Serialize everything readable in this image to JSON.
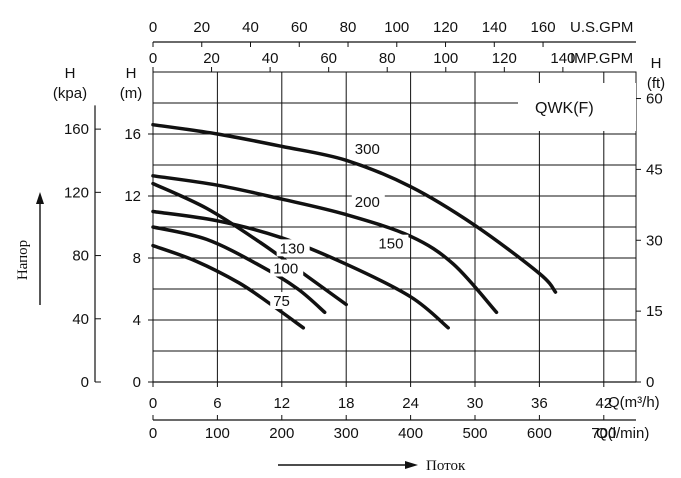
{
  "chart_data": {
    "type": "line",
    "model_label": "QWK(F)",
    "axes": {
      "bottom_primary": {
        "unit_label": "Q(m³/h)",
        "min": 0,
        "max": 45,
        "ticks": [
          0,
          6,
          12,
          18,
          24,
          30,
          36,
          42
        ]
      },
      "bottom_secondary": {
        "unit_label": "Q(l/min)",
        "ticks": [
          0,
          100,
          200,
          300,
          400,
          500,
          600,
          700
        ]
      },
      "top_us": {
        "unit_label": "U.S.GPM",
        "ticks": [
          0,
          20,
          40,
          60,
          80,
          100,
          120,
          140,
          160
        ]
      },
      "top_imp": {
        "unit_label": "IMP.GPM",
        "ticks": [
          0,
          20,
          40,
          60,
          80,
          100,
          120,
          140
        ]
      },
      "left_m": {
        "label_h": "H",
        "label_unit": "(m)",
        "min": 0,
        "max": 20,
        "ticks": [
          0,
          4,
          8,
          12,
          16
        ]
      },
      "left_kpa": {
        "label_h": "H",
        "label_unit": "(kpa)",
        "ticks": [
          0,
          40,
          80,
          120,
          160
        ]
      },
      "right_ft": {
        "label_h": "H",
        "label_unit": "(ft)",
        "ticks": [
          0,
          15,
          30,
          45,
          60
        ]
      }
    },
    "side_labels": {
      "y_text": "Напор",
      "x_text": "Поток"
    },
    "grid": true,
    "series": [
      {
        "name": "300",
        "points": [
          [
            0,
            16.6
          ],
          [
            6,
            16.0
          ],
          [
            12,
            15.2
          ],
          [
            18,
            14.3
          ],
          [
            24,
            12.6
          ],
          [
            30,
            10.1
          ],
          [
            36,
            7.0
          ],
          [
            37.5,
            5.8
          ]
        ]
      },
      {
        "name": "200",
        "points": [
          [
            0,
            13.3
          ],
          [
            6,
            12.7
          ],
          [
            12,
            11.8
          ],
          [
            18,
            10.8
          ],
          [
            24,
            9.4
          ],
          [
            28,
            7.6
          ],
          [
            32,
            4.5
          ]
        ]
      },
      {
        "name": "150",
        "points": [
          [
            0,
            11.0
          ],
          [
            6,
            10.4
          ],
          [
            12,
            9.3
          ],
          [
            18,
            7.6
          ],
          [
            24,
            5.5
          ],
          [
            27.5,
            3.5
          ]
        ]
      },
      {
        "name": "130",
        "points": [
          [
            0,
            12.8
          ],
          [
            5,
            11.2
          ],
          [
            10,
            9.0
          ],
          [
            14,
            7.0
          ],
          [
            18,
            5.0
          ]
        ]
      },
      {
        "name": "100",
        "points": [
          [
            0,
            10.0
          ],
          [
            5,
            9.2
          ],
          [
            10,
            7.5
          ],
          [
            13.5,
            6.0
          ],
          [
            16,
            4.5
          ]
        ]
      },
      {
        "name": "75",
        "points": [
          [
            0,
            8.8
          ],
          [
            4,
            7.8
          ],
          [
            8,
            6.4
          ],
          [
            11,
            5.0
          ],
          [
            14,
            3.5
          ]
        ]
      }
    ]
  }
}
